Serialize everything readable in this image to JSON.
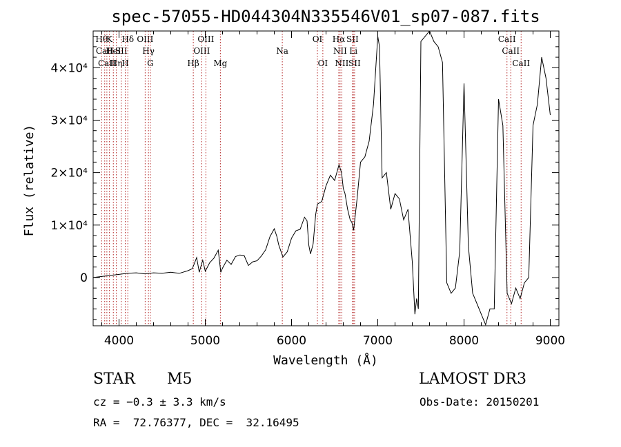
{
  "chart_data": {
    "type": "line",
    "title": "spec-57055-HD044304N335546V01_sp07-087.fits",
    "xlabel": "Wavelength (Å)",
    "ylabel": "Flux (relative)",
    "xlim": [
      3700,
      9100
    ],
    "ylim": [
      -9200,
      47000
    ],
    "x_ticks": [
      4000,
      5000,
      6000,
      7000,
      8000,
      9000
    ],
    "y_ticks": [
      {
        "value": 0,
        "label": "0"
      },
      {
        "value": 10000,
        "label": "1×10⁴"
      },
      {
        "value": 20000,
        "label": "2×10⁴"
      },
      {
        "value": 30000,
        "label": "3×10⁴"
      },
      {
        "value": 40000,
        "label": "4×10⁴"
      }
    ],
    "series": [
      {
        "name": "spectrum",
        "x": [
          3700,
          3800,
          3900,
          4000,
          4100,
          4200,
          4300,
          4400,
          4500,
          4600,
          4700,
          4800,
          4850,
          4900,
          4930,
          4950,
          4970,
          5000,
          5050,
          5100,
          5150,
          5180,
          5200,
          5250,
          5300,
          5350,
          5400,
          5450,
          5500,
          5550,
          5600,
          5650,
          5700,
          5750,
          5800,
          5830,
          5850,
          5900,
          5950,
          6000,
          6050,
          6100,
          6150,
          6180,
          6200,
          6220,
          6250,
          6280,
          6300,
          6350,
          6400,
          6450,
          6500,
          6550,
          6580,
          6600,
          6620,
          6650,
          6680,
          6700,
          6720,
          6740,
          6760,
          6800,
          6850,
          6900,
          6950,
          7000,
          7020,
          7050,
          7100,
          7150,
          7200,
          7250,
          7300,
          7350,
          7400,
          7430,
          7450,
          7470,
          7500,
          7550,
          7600,
          7650,
          7700,
          7750,
          7800,
          7850,
          7900,
          7950,
          8000,
          8050,
          8100,
          8150,
          8200,
          8250,
          8300,
          8350,
          8400,
          8450,
          8500,
          8550,
          8600,
          8650,
          8700,
          8750,
          8800,
          8850,
          8900,
          8950,
          9000
        ],
        "y": [
          0,
          200,
          400,
          600,
          800,
          900,
          700,
          900,
          800,
          1000,
          800,
          1300,
          1700,
          3800,
          1000,
          2200,
          3300,
          1200,
          2800,
          3700,
          5200,
          1000,
          1800,
          3300,
          2500,
          4000,
          4300,
          4200,
          2300,
          3000,
          3200,
          4100,
          5300,
          7800,
          9300,
          7800,
          6300,
          3900,
          4900,
          7500,
          8900,
          9200,
          11500,
          10800,
          6200,
          4500,
          6400,
          12000,
          14000,
          14500,
          17500,
          19500,
          18500,
          21500,
          20000,
          17000,
          16000,
          13000,
          11000,
          10500,
          9000,
          12000,
          15000,
          22000,
          23000,
          26000,
          33000,
          46000,
          44000,
          19000,
          20000,
          13000,
          16000,
          15000,
          11000,
          13000,
          3000,
          -7000,
          -4000,
          -6000,
          45000,
          46000,
          47000,
          45000,
          44000,
          41000,
          -1000,
          -3000,
          -2000,
          5000,
          37000,
          6000,
          -3000,
          -5000,
          -7000,
          -9000,
          -6000,
          -6000,
          34000,
          29000,
          -3000,
          -5000,
          -2000,
          -4000,
          -1000,
          0,
          29000,
          33000,
          42000,
          38000,
          31000
        ]
      }
    ],
    "lines": [
      {
        "name": "Hθ",
        "x": 3798,
        "row": 0
      },
      {
        "name": "CaII",
        "x": 3834,
        "row": 1
      },
      {
        "name": "CaII",
        "x": 3859,
        "row": 2
      },
      {
        "name": "K",
        "x": 3889,
        "row": 0
      },
      {
        "name": "HeI",
        "x": 3934,
        "row": 1
      },
      {
        "name": "Hη",
        "x": 3969,
        "row": 2
      },
      {
        "name": "SII",
        "x": 4026,
        "row": 1
      },
      {
        "name": "H",
        "x": 4072,
        "row": 2
      },
      {
        "name": "Hδ",
        "x": 4102,
        "row": 0
      },
      {
        "name": "OIII",
        "x": 4303,
        "row": 0
      },
      {
        "name": "Hγ",
        "x": 4341,
        "row": 1
      },
      {
        "name": "G",
        "x": 4363,
        "row": 2
      },
      {
        "name": "Hβ",
        "x": 4861,
        "row": 2
      },
      {
        "name": "OIII",
        "x": 4959,
        "row": 1
      },
      {
        "name": "OIII",
        "x": 5007,
        "row": 0
      },
      {
        "name": "Mg",
        "x": 5175,
        "row": 2
      },
      {
        "name": "Na",
        "x": 5893,
        "row": 1
      },
      {
        "name": "OI",
        "x": 6300,
        "row": 0
      },
      {
        "name": "OI",
        "x": 6363,
        "row": 2
      },
      {
        "name": "Hα",
        "x": 6548,
        "row": 0
      },
      {
        "name": "NII",
        "x": 6563,
        "row": 1
      },
      {
        "name": "NII",
        "x": 6583,
        "row": 2
      },
      {
        "name": "SII",
        "x": 6707,
        "row": 0
      },
      {
        "name": "Li",
        "x": 6717,
        "row": 1
      },
      {
        "name": "SII",
        "x": 6731,
        "row": 2
      },
      {
        "name": "CaII",
        "x": 8498,
        "row": 0
      },
      {
        "name": "CaII",
        "x": 8542,
        "row": 1
      },
      {
        "name": "CaII",
        "x": 8662,
        "row": 2
      }
    ]
  },
  "info": {
    "object_class": "STAR",
    "subclass": "M5",
    "survey": "LAMOST DR3",
    "redshift": "cz = −0.3 ± 3.3 km/s",
    "obs_date": "Obs-Date: 20150201",
    "coords": "RA =  72.76377, DEC =  32.16495"
  }
}
